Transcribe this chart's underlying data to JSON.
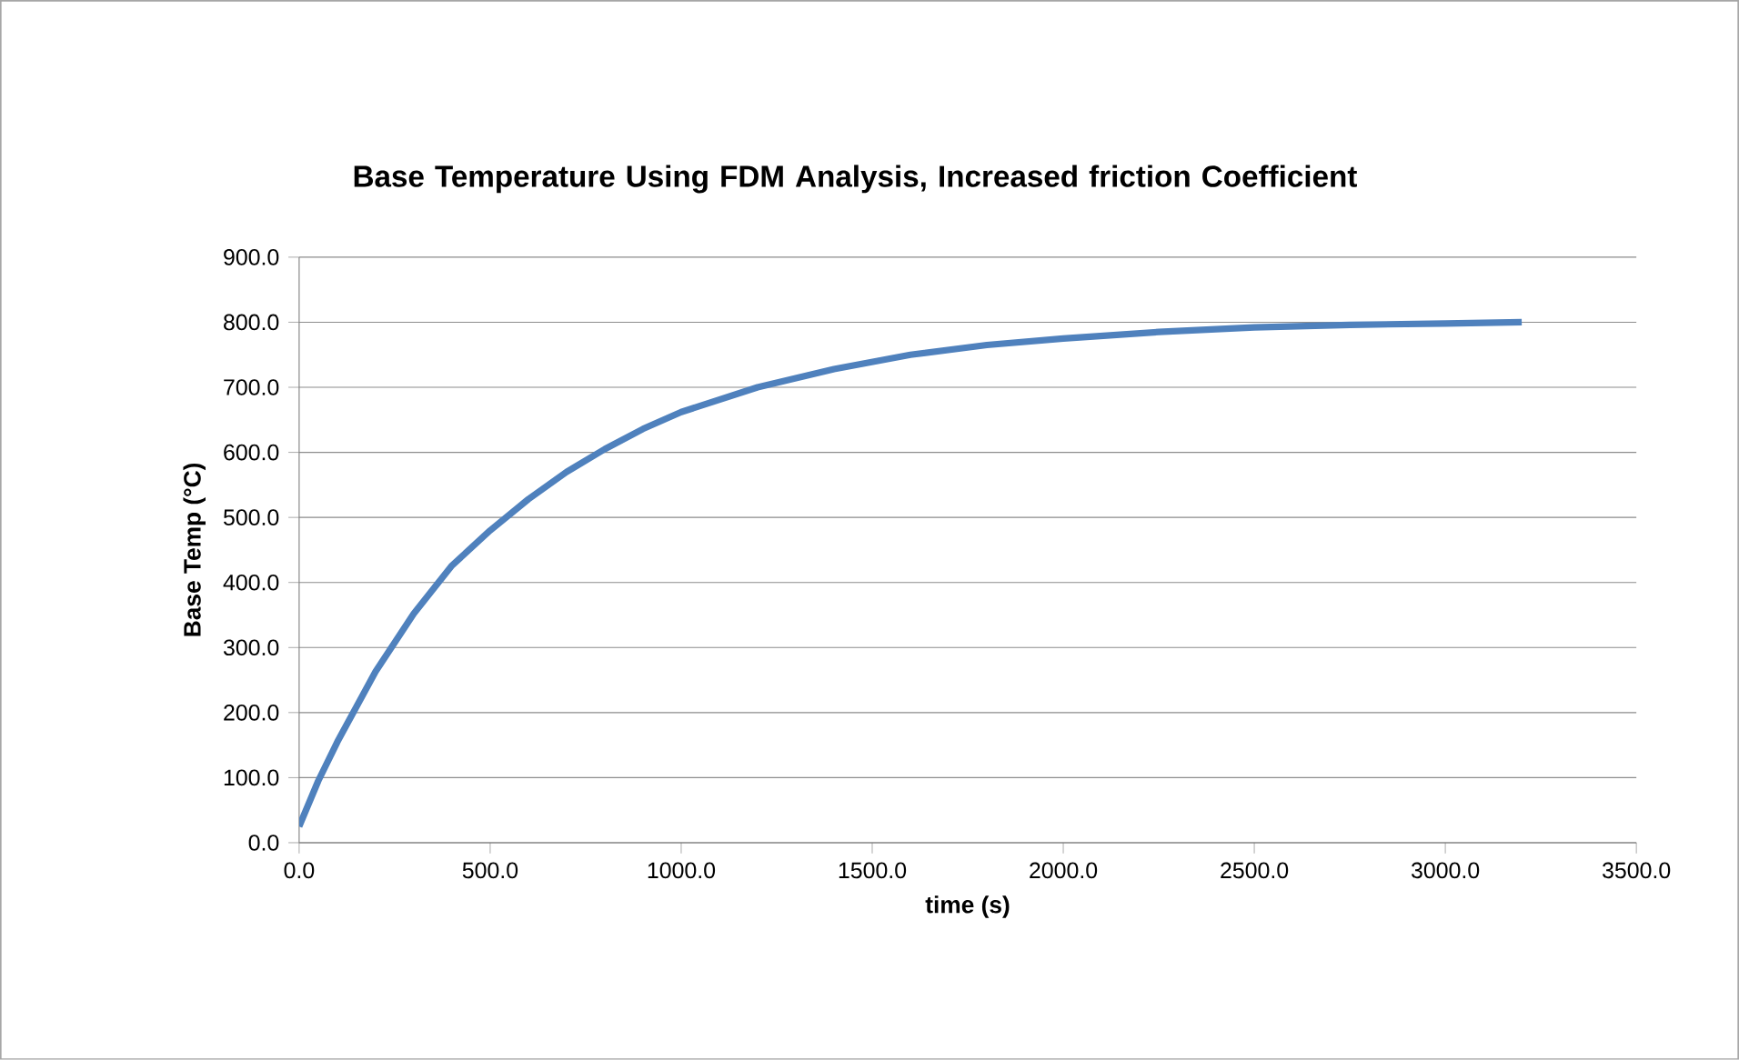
{
  "chart_data": {
    "type": "line",
    "title": "Base Temperature Using FDM Analysis, Increased friction Coefficient",
    "xlabel": "time (s)",
    "ylabel": "Base Temp (°C)",
    "x": [
      0,
      50,
      100,
      200,
      300,
      400,
      500,
      600,
      700,
      800,
      900,
      1000,
      1200,
      1400,
      1600,
      1800,
      2000,
      2250,
      2500,
      2750,
      3000,
      3200
    ],
    "series": [
      {
        "color": "#4f81bd",
        "values": [
          25,
          95,
          155,
          263,
          352,
          426,
          480,
          528,
          570,
          605,
          636,
          662,
          700,
          728,
          750,
          765,
          775,
          785,
          792,
          796,
          798,
          800
        ]
      }
    ],
    "xlim": [
      0,
      3500
    ],
    "ylim": [
      0,
      900
    ],
    "xticks": [
      {
        "value": 0,
        "label": "0.0"
      },
      {
        "value": 500,
        "label": "500.0"
      },
      {
        "value": 1000,
        "label": "1000.0"
      },
      {
        "value": 1500,
        "label": "1500.0"
      },
      {
        "value": 2000,
        "label": "2000.0"
      },
      {
        "value": 2500,
        "label": "2500.0"
      },
      {
        "value": 3000,
        "label": "3000.0"
      },
      {
        "value": 3500,
        "label": "3500.0"
      }
    ],
    "yticks": [
      {
        "value": 0,
        "label": "0.0"
      },
      {
        "value": 100,
        "label": "100.0"
      },
      {
        "value": 200,
        "label": "200.0"
      },
      {
        "value": 300,
        "label": "300.0"
      },
      {
        "value": 400,
        "label": "400.0"
      },
      {
        "value": 500,
        "label": "500.0"
      },
      {
        "value": 600,
        "label": "600.0"
      },
      {
        "value": 700,
        "label": "700.0"
      },
      {
        "value": 800,
        "label": "800.0"
      },
      {
        "value": 900,
        "label": "900.0"
      }
    ],
    "grid": "y",
    "marker": "none",
    "line_style": "solid"
  }
}
